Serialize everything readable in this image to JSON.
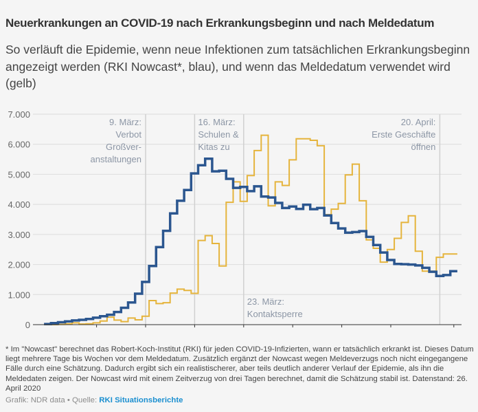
{
  "title": "Neuerkrankungen an COVID-19 nach Erkrankungsbeginn und nach Meldedatum",
  "subtitle": "So verläuft die Epidemie, wenn neue Infektionen zum tatsächlichen Erkrankungsbeginn angezeigt werden (RKI Nowcast*, blau), und wenn das Meldedatum verwendet wird (gelb)",
  "footnote": "* Im \"Nowcast\" berechnet das Robert-Koch-Institut (RKI) für jeden COVID-19-Infizierten, wann er tatsächlich erkrankt ist. Dieses Datum liegt mehrere Tage bis Wochen vor dem Meldedatum. Zusätzlich ergänzt der Nowcast wegen Meldeverzugs noch nicht eingegangene Fälle durch eine Schätzung. Dadurch ergibt sich ein realistischerer, aber teils deutlich anderer Verlauf der Epidemie, als ihn die Meldedaten zeigen. Der Nowcast wird mit einem Zeitverzug von drei Tagen berechnet, damit die Schätzung stabil ist. Datenstand: 26. April 2020",
  "credit": {
    "prefix": "Grafik: NDR data • Quelle: ",
    "link": "RKI Situationsberichte"
  },
  "colors": {
    "nowcast": "#2b568f",
    "meldedatum": "#e5b43c",
    "grid": "#dcdcdc",
    "annotation": "#8c96a5",
    "link": "#1a8fd0"
  },
  "chart_data": {
    "type": "line",
    "step": true,
    "grid": true,
    "ylim": [
      0,
      7000
    ],
    "yticks": [
      "0",
      "1.000",
      "2.000",
      "3.000",
      "4.000",
      "5.000",
      "6.000",
      "7.000"
    ],
    "ytick_values": [
      0,
      1000,
      2000,
      3000,
      4000,
      5000,
      6000,
      7000
    ],
    "x_start": "2020-02-24",
    "x_end": "2020-04-22",
    "xtick_dates": [
      "2020-03-02",
      "2020-03-09",
      "2020-03-16",
      "2020-03-23",
      "2020-03-30",
      "2020-04-06",
      "2020-04-13",
      "2020-04-22"
    ],
    "series": [
      {
        "key": "nowcast",
        "values": [
          20,
          50,
          80,
          110,
          140,
          160,
          190,
          230,
          280,
          330,
          420,
          560,
          740,
          1030,
          1420,
          1950,
          2580,
          3120,
          3700,
          4120,
          4480,
          5030,
          5300,
          5520,
          5100,
          5120,
          4850,
          4550,
          4580,
          4440,
          4600,
          4260,
          4230,
          4050,
          3880,
          3930,
          3850,
          3990,
          3840,
          3880,
          3630,
          3380,
          3200,
          3060,
          3080,
          3110,
          2920,
          2650,
          2400,
          2150,
          2020,
          2010,
          2000,
          1970,
          1890,
          1760,
          1620,
          1650,
          1780
        ]
      },
      {
        "key": "meldedatum",
        "values": [
          0,
          0,
          10,
          30,
          60,
          20,
          30,
          60,
          120,
          250,
          150,
          100,
          220,
          160,
          280,
          800,
          700,
          730,
          1050,
          1180,
          1140,
          1040,
          2800,
          2960,
          2700,
          1950,
          4070,
          4750,
          4100,
          4960,
          5790,
          6300,
          3950,
          4750,
          4630,
          5480,
          6180,
          6180,
          6130,
          5950,
          3660,
          3840,
          4030,
          4980,
          5340,
          4120,
          2820,
          2540,
          2080,
          2500,
          2870,
          3400,
          3620,
          2440,
          1780,
          1780,
          2240,
          2350,
          2350
        ]
      }
    ],
    "annotations": [
      {
        "date": "2020-03-09",
        "lines": [
          "9. März:",
          "Verbot",
          "Großver-",
          "anstaltungen"
        ],
        "side": "left",
        "position": "top"
      },
      {
        "date": "2020-03-16",
        "lines": [
          "16. März:",
          "Schulen &",
          "Kitas zu"
        ],
        "side": "right",
        "position": "top"
      },
      {
        "date": "2020-03-23",
        "lines": [
          "23. März:",
          "Kontaktsperre"
        ],
        "side": "right",
        "position": "bottom"
      },
      {
        "date": "2020-04-20",
        "lines": [
          "20. April:",
          "Erste Geschäfte",
          "öffnen"
        ],
        "side": "left",
        "position": "top"
      }
    ]
  }
}
